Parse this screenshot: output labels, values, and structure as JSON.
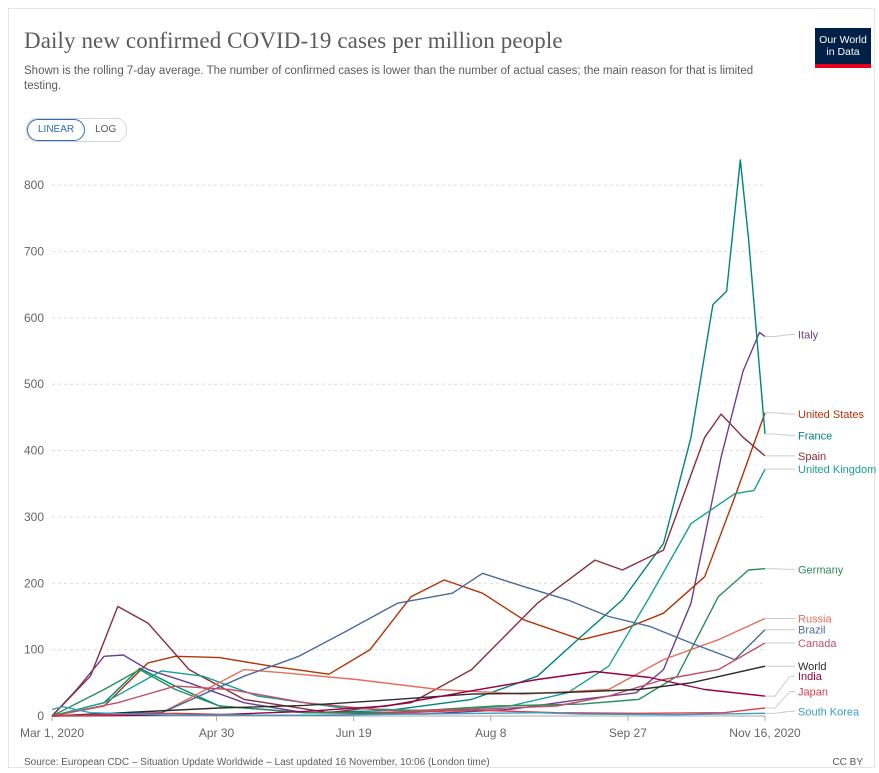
{
  "header": {
    "title": "Daily new confirmed COVID-19 cases per million people",
    "subtitle": "Shown is the rolling 7-day average. The number of confirmed cases is lower than the number of actual cases; the main reason for that is limited testing."
  },
  "logo": {
    "line1": "Our World",
    "line2": "in Data",
    "bg_color": "#002147",
    "stripe_color": "#e8001b"
  },
  "scale_toggle": {
    "linear_label": "LINEAR",
    "log_label": "LOG",
    "selected": "LINEAR"
  },
  "footer": {
    "source": "Source: European CDC – Situation Update Worldwide – Last updated 16 November, 10:06 (London time)",
    "license": "CC BY"
  },
  "chart_data": {
    "type": "line",
    "title": "Daily new confirmed COVID-19 cases per million people",
    "x_type": "date",
    "xlim": [
      "2020-03-01",
      "2020-11-16"
    ],
    "ylim": [
      0,
      850
    ],
    "y_ticks": [
      0,
      100,
      200,
      300,
      400,
      500,
      600,
      700,
      800
    ],
    "x_ticks": [
      {
        "date": "2020-03-01",
        "label": "Mar 1, 2020"
      },
      {
        "date": "2020-04-30",
        "label": "Apr 30"
      },
      {
        "date": "2020-06-19",
        "label": "Jun 19"
      },
      {
        "date": "2020-08-08",
        "label": "Aug 8"
      },
      {
        "date": "2020-09-27",
        "label": "Sep 27"
      },
      {
        "date": "2020-11-16",
        "label": "Nov 16, 2020"
      }
    ],
    "grid": "horizontal-dashed",
    "legend": "right-end-labels",
    "series": [
      {
        "name": "Italy",
        "color": "#6d3e91",
        "label_y": 575,
        "points": [
          [
            "2020-03-01",
            0
          ],
          [
            "2020-03-10",
            40
          ],
          [
            "2020-03-20",
            90
          ],
          [
            "2020-03-27",
            92
          ],
          [
            "2020-04-05",
            70
          ],
          [
            "2020-04-20",
            50
          ],
          [
            "2020-05-10",
            20
          ],
          [
            "2020-06-01",
            5
          ],
          [
            "2020-07-15",
            3
          ],
          [
            "2020-08-15",
            10
          ],
          [
            "2020-09-10",
            25
          ],
          [
            "2020-09-30",
            35
          ],
          [
            "2020-10-10",
            70
          ],
          [
            "2020-10-20",
            170
          ],
          [
            "2020-10-31",
            390
          ],
          [
            "2020-11-08",
            520
          ],
          [
            "2020-11-14",
            578
          ],
          [
            "2020-11-16",
            572
          ]
        ]
      },
      {
        "name": "United States",
        "color": "#b13507",
        "label_y": 455,
        "points": [
          [
            "2020-03-01",
            0
          ],
          [
            "2020-03-20",
            15
          ],
          [
            "2020-04-05",
            80
          ],
          [
            "2020-04-15",
            90
          ],
          [
            "2020-05-01",
            88
          ],
          [
            "2020-05-20",
            75
          ],
          [
            "2020-06-10",
            63
          ],
          [
            "2020-06-25",
            100
          ],
          [
            "2020-07-10",
            180
          ],
          [
            "2020-07-22",
            205
          ],
          [
            "2020-08-05",
            185
          ],
          [
            "2020-08-20",
            145
          ],
          [
            "2020-09-10",
            115
          ],
          [
            "2020-09-25",
            130
          ],
          [
            "2020-10-10",
            155
          ],
          [
            "2020-10-25",
            210
          ],
          [
            "2020-11-05",
            330
          ],
          [
            "2020-11-16",
            457
          ]
        ]
      },
      {
        "name": "France",
        "color": "#00847e",
        "label_y": 423,
        "points": [
          [
            "2020-03-01",
            0
          ],
          [
            "2020-03-20",
            20
          ],
          [
            "2020-04-02",
            72
          ],
          [
            "2020-04-15",
            45
          ],
          [
            "2020-05-01",
            15
          ],
          [
            "2020-06-01",
            5
          ],
          [
            "2020-07-01",
            8
          ],
          [
            "2020-08-01",
            25
          ],
          [
            "2020-08-25",
            60
          ],
          [
            "2020-09-10",
            120
          ],
          [
            "2020-09-25",
            175
          ],
          [
            "2020-10-10",
            260
          ],
          [
            "2020-10-20",
            420
          ],
          [
            "2020-10-28",
            620
          ],
          [
            "2020-11-02",
            640
          ],
          [
            "2020-11-07",
            838
          ],
          [
            "2020-11-10",
            720
          ],
          [
            "2020-11-16",
            425
          ]
        ]
      },
      {
        "name": "Spain",
        "color": "#883039",
        "label_y": 392,
        "points": [
          [
            "2020-03-01",
            0
          ],
          [
            "2020-03-15",
            60
          ],
          [
            "2020-03-25",
            165
          ],
          [
            "2020-04-05",
            140
          ],
          [
            "2020-04-20",
            70
          ],
          [
            "2020-05-10",
            25
          ],
          [
            "2020-06-10",
            5
          ],
          [
            "2020-07-10",
            20
          ],
          [
            "2020-08-01",
            70
          ],
          [
            "2020-08-25",
            170
          ],
          [
            "2020-09-15",
            235
          ],
          [
            "2020-09-25",
            220
          ],
          [
            "2020-10-10",
            250
          ],
          [
            "2020-10-25",
            420
          ],
          [
            "2020-10-31",
            455
          ],
          [
            "2020-11-08",
            420
          ],
          [
            "2020-11-16",
            392
          ]
        ]
      },
      {
        "name": "United Kingdom",
        "color": "#18a095",
        "label_y": 372,
        "points": [
          [
            "2020-03-01",
            0
          ],
          [
            "2020-03-20",
            20
          ],
          [
            "2020-04-10",
            68
          ],
          [
            "2020-04-25",
            60
          ],
          [
            "2020-05-15",
            30
          ],
          [
            "2020-06-15",
            12
          ],
          [
            "2020-07-15",
            8
          ],
          [
            "2020-08-15",
            15
          ],
          [
            "2020-09-05",
            35
          ],
          [
            "2020-09-20",
            75
          ],
          [
            "2020-10-05",
            180
          ],
          [
            "2020-10-20",
            290
          ],
          [
            "2020-11-05",
            335
          ],
          [
            "2020-11-12",
            340
          ],
          [
            "2020-11-16",
            372
          ]
        ]
      },
      {
        "name": "Germany",
        "color": "#2a8c5a",
        "label_y": 221,
        "points": [
          [
            "2020-03-01",
            0
          ],
          [
            "2020-03-20",
            40
          ],
          [
            "2020-04-02",
            70
          ],
          [
            "2020-04-15",
            40
          ],
          [
            "2020-05-01",
            15
          ],
          [
            "2020-06-01",
            5
          ],
          [
            "2020-07-01",
            5
          ],
          [
            "2020-08-10",
            15
          ],
          [
            "2020-09-10",
            18
          ],
          [
            "2020-10-01",
            25
          ],
          [
            "2020-10-15",
            60
          ],
          [
            "2020-10-30",
            180
          ],
          [
            "2020-11-10",
            220
          ],
          [
            "2020-11-16",
            222
          ]
        ]
      },
      {
        "name": "Russia",
        "color": "#e56e5a",
        "label_y": 147,
        "points": [
          [
            "2020-03-01",
            0
          ],
          [
            "2020-04-10",
            5
          ],
          [
            "2020-05-10",
            70
          ],
          [
            "2020-05-25",
            65
          ],
          [
            "2020-06-20",
            55
          ],
          [
            "2020-07-20",
            40
          ],
          [
            "2020-08-20",
            33
          ],
          [
            "2020-09-20",
            40
          ],
          [
            "2020-10-10",
            85
          ],
          [
            "2020-10-30",
            115
          ],
          [
            "2020-11-16",
            147
          ]
        ]
      },
      {
        "name": "Brazil",
        "color": "#4c6a9c",
        "label_y": 130,
        "points": [
          [
            "2020-03-01",
            0
          ],
          [
            "2020-04-10",
            5
          ],
          [
            "2020-05-10",
            60
          ],
          [
            "2020-05-30",
            90
          ],
          [
            "2020-06-15",
            125
          ],
          [
            "2020-07-05",
            170
          ],
          [
            "2020-07-25",
            185
          ],
          [
            "2020-08-05",
            215
          ],
          [
            "2020-08-20",
            195
          ],
          [
            "2020-09-05",
            175
          ],
          [
            "2020-09-20",
            150
          ],
          [
            "2020-10-05",
            135
          ],
          [
            "2020-10-20",
            110
          ],
          [
            "2020-11-05",
            85
          ],
          [
            "2020-11-16",
            130
          ]
        ]
      },
      {
        "name": "Canada",
        "color": "#c15065",
        "label_y": 110,
        "points": [
          [
            "2020-03-01",
            0
          ],
          [
            "2020-03-25",
            20
          ],
          [
            "2020-04-15",
            45
          ],
          [
            "2020-05-05",
            40
          ],
          [
            "2020-06-01",
            20
          ],
          [
            "2020-07-01",
            8
          ],
          [
            "2020-08-01",
            10
          ],
          [
            "2020-09-01",
            15
          ],
          [
            "2020-09-20",
            30
          ],
          [
            "2020-10-10",
            55
          ],
          [
            "2020-10-30",
            70
          ],
          [
            "2020-11-16",
            110
          ]
        ]
      },
      {
        "name": "World",
        "color": "#2c2c2c",
        "label_y": 75,
        "points": [
          [
            "2020-03-01",
            0
          ],
          [
            "2020-04-01",
            6
          ],
          [
            "2020-05-01",
            12
          ],
          [
            "2020-06-01",
            16
          ],
          [
            "2020-07-01",
            24
          ],
          [
            "2020-08-01",
            33
          ],
          [
            "2020-09-01",
            35
          ],
          [
            "2020-10-01",
            40
          ],
          [
            "2020-10-20",
            50
          ],
          [
            "2020-11-16",
            75
          ]
        ]
      },
      {
        "name": "India",
        "color": "#970046",
        "label_y": 60,
        "points": [
          [
            "2020-03-01",
            0
          ],
          [
            "2020-05-01",
            2
          ],
          [
            "2020-06-01",
            7
          ],
          [
            "2020-07-01",
            15
          ],
          [
            "2020-08-01",
            38
          ],
          [
            "2020-08-25",
            55
          ],
          [
            "2020-09-15",
            67
          ],
          [
            "2020-10-05",
            58
          ],
          [
            "2020-10-25",
            40
          ],
          [
            "2020-11-16",
            30
          ]
        ]
      },
      {
        "name": "Japan",
        "color": "#d73c50",
        "label_y": 37,
        "points": [
          [
            "2020-03-01",
            0
          ],
          [
            "2020-04-15",
            4
          ],
          [
            "2020-05-15",
            1
          ],
          [
            "2020-06-15",
            1
          ],
          [
            "2020-08-01",
            9
          ],
          [
            "2020-09-01",
            5
          ],
          [
            "2020-10-01",
            4
          ],
          [
            "2020-11-01",
            5
          ],
          [
            "2020-11-16",
            12
          ]
        ]
      },
      {
        "name": "South Korea",
        "color": "#3a9ec2",
        "label_y": 7,
        "points": [
          [
            "2020-03-01",
            10
          ],
          [
            "2020-03-05",
            14
          ],
          [
            "2020-03-15",
            5
          ],
          [
            "2020-04-15",
            1
          ],
          [
            "2020-06-01",
            1
          ],
          [
            "2020-08-25",
            5
          ],
          [
            "2020-09-10",
            3
          ],
          [
            "2020-10-15",
            2
          ],
          [
            "2020-11-16",
            4
          ]
        ]
      }
    ]
  }
}
